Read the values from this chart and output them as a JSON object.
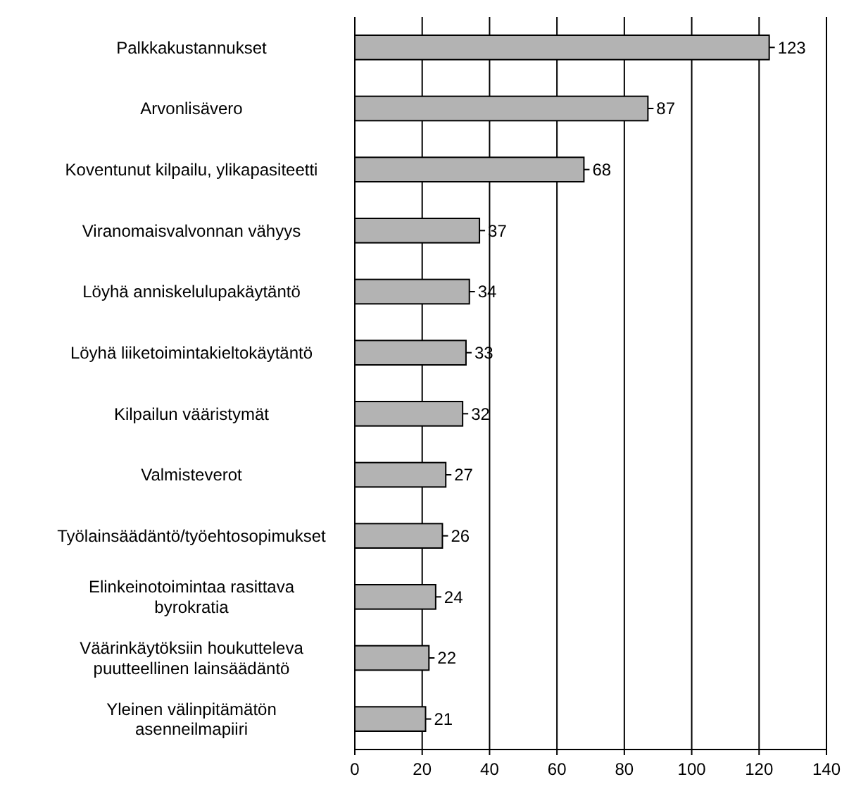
{
  "chart_data": {
    "type": "bar",
    "orientation": "horizontal",
    "categories": [
      "Palkkakustannukset",
      "Arvonlisävero",
      "Koventunut kilpailu, ylikapasiteetti",
      "Viranomaisvalvonnan vähyys",
      "Löyhä anniskelulupakäytäntö",
      "Löyhä liiketoimintakieltokäytäntö",
      "Kilpailun vääristymät",
      "Valmisteverot",
      "Työlainsäädäntö/työehtosopimukset",
      "Elinkeinotoimintaa rasittava\nbyrokratia",
      "Väärinkäytöksiin houkutteleva\npuutteellinen lainsäädäntö",
      "Yleinen välinpitämätön\nasenneilmapiiri"
    ],
    "values": [
      123,
      87,
      68,
      37,
      34,
      33,
      32,
      27,
      26,
      24,
      22,
      21
    ],
    "color": "#b3b3b3",
    "xlim": [
      0,
      140
    ],
    "xticks": [
      0,
      20,
      40,
      60,
      80,
      100,
      120,
      140
    ],
    "grid": "x",
    "data_labels": true
  }
}
